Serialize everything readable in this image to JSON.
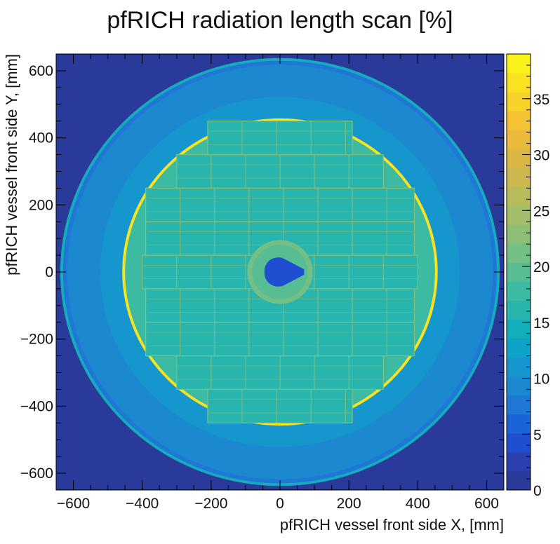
{
  "chart_data": {
    "type": "heatmap",
    "title": "pfRICH radiation length scan [%]",
    "xlabel": "pfRICH vessel front side X, [mm]",
    "ylabel": "pfRICH vessel front side Y, [mm]",
    "xlim": [
      -650,
      650
    ],
    "ylim": [
      -650,
      650
    ],
    "x_ticks": [
      -600,
      -400,
      -200,
      0,
      200,
      400,
      600
    ],
    "y_ticks": [
      -600,
      -400,
      -200,
      0,
      200,
      400,
      600
    ],
    "x_tick_labels": [
      "−600",
      "−400",
      "−200",
      "0",
      "200",
      "400",
      "600"
    ],
    "y_tick_labels": [
      "−600",
      "−400",
      "−200",
      "0",
      "200",
      "400",
      "600"
    ],
    "colorbar": {
      "zlim": [
        0,
        39
      ],
      "ticks": [
        0,
        5,
        10,
        15,
        20,
        25,
        30,
        35
      ],
      "tick_labels": [
        "0",
        "5",
        "10",
        "15",
        "20",
        "25",
        "30",
        "35"
      ],
      "palette": [
        "#2a3a9a",
        "#2c3fae",
        "#1f4fd0",
        "#1b64d8",
        "#1f78d6",
        "#1b88d0",
        "#1596cc",
        "#0fa3c7",
        "#13adbb",
        "#27b5ae",
        "#3cbaa2",
        "#58bd93",
        "#73bf84",
        "#8cbf75",
        "#a3be68",
        "#b8bb5c",
        "#cbb84f",
        "#dcb645",
        "#ebb93c",
        "#f5c234",
        "#f8d12b",
        "#f9e321",
        "#f9f31b"
      ]
    },
    "structure": {
      "background_value": 1,
      "outer_vessel_radius_mm": 638,
      "outer_ring_value": 15,
      "outer_annulus_value": 8,
      "middle_annulus_value": 11,
      "sensor_plane_radius_mm": 452,
      "sensor_plane_value": 17,
      "sensor_ring_value": 36,
      "beam_pipe_radius_mm": 45,
      "beam_pipe_value": 4,
      "beam_collar_radius_mm": 95,
      "beam_collar_value": 22,
      "sensor_module_grid_value": 23,
      "sensor_row_half_widths_mm": {
        "400": 210,
        "300": 300,
        "200": 390,
        "100": 390,
        "0": 400,
        "-100": 390,
        "-200": 390,
        "-300": 300,
        "-400": 210
      }
    }
  }
}
